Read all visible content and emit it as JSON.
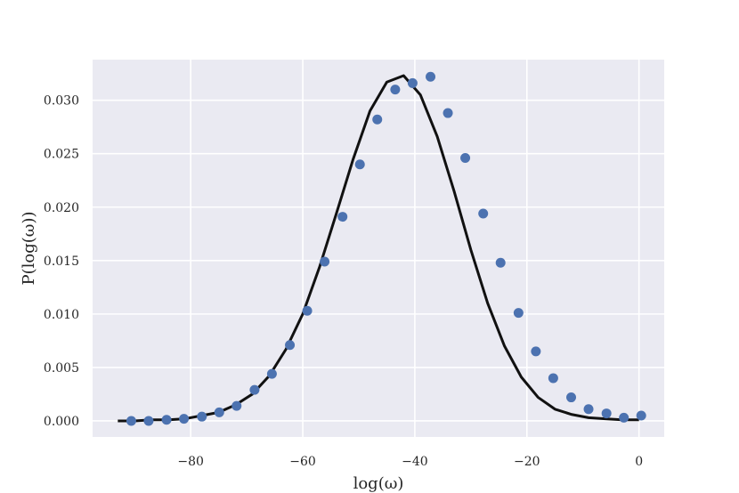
{
  "chart_data": {
    "type": "scatter",
    "title": "",
    "xlabel": "log(ω)",
    "ylabel": "P(log(ω))",
    "xlim": [
      -97.5,
      4.5
    ],
    "ylim": [
      -0.0015,
      0.0338
    ],
    "xticks": [
      -80,
      -60,
      -40,
      -20,
      0
    ],
    "xtick_labels": [
      "−80",
      "−60",
      "−40",
      "−20",
      "0"
    ],
    "yticks": [
      0.0,
      0.005,
      0.01,
      0.015,
      0.02,
      0.025,
      0.03
    ],
    "ytick_labels": [
      "0.000",
      "0.005",
      "0.010",
      "0.015",
      "0.020",
      "0.025",
      "0.030"
    ],
    "grid": true,
    "style": {
      "background": "#eaeaf2",
      "grid_color": "#ffffff",
      "point_color": "#4c72b0",
      "line_color": "#111111"
    },
    "series": [
      {
        "kind": "scatter",
        "x": [
          -90.6,
          -87.5,
          -84.3,
          -81.2,
          -78.0,
          -74.9,
          -71.8,
          -68.6,
          -65.5,
          -62.3,
          -59.2,
          -56.1,
          -52.9,
          -49.8,
          -46.7,
          -43.5,
          -40.4,
          -37.2,
          -34.1,
          -31.0,
          -27.8,
          -24.7,
          -21.5,
          -18.4,
          -15.3,
          -12.1,
          -9.0,
          -5.8,
          -2.7,
          0.4
        ],
        "y": [
          0.0,
          0.0,
          0.0001,
          0.0002,
          0.0004,
          0.0008,
          0.0014,
          0.0029,
          0.0044,
          0.0071,
          0.0103,
          0.0149,
          0.0191,
          0.024,
          0.0282,
          0.031,
          0.0316,
          0.0322,
          0.0288,
          0.0246,
          0.0194,
          0.0148,
          0.0101,
          0.0065,
          0.004,
          0.0022,
          0.0011,
          0.0007,
          0.0003,
          0.0005
        ]
      },
      {
        "kind": "line",
        "x": [
          -93,
          -90,
          -87,
          -84,
          -81,
          -78,
          -75,
          -72,
          -69,
          -66,
          -63,
          -60,
          -57,
          -54,
          -51,
          -48,
          -45,
          -42,
          -39,
          -36,
          -33,
          -30,
          -27,
          -24,
          -21,
          -18,
          -15,
          -12,
          -9,
          -6,
          -3,
          0
        ],
        "y": [
          0.0,
          0.0,
          0.0001,
          0.0001,
          0.0002,
          0.0005,
          0.0008,
          0.0015,
          0.0025,
          0.0042,
          0.0067,
          0.01,
          0.0144,
          0.0194,
          0.0245,
          0.029,
          0.0317,
          0.0323,
          0.0305,
          0.0266,
          0.0215,
          0.016,
          0.011,
          0.007,
          0.0041,
          0.0022,
          0.0011,
          0.0006,
          0.0003,
          0.0002,
          0.0001,
          0.0001
        ]
      }
    ]
  }
}
